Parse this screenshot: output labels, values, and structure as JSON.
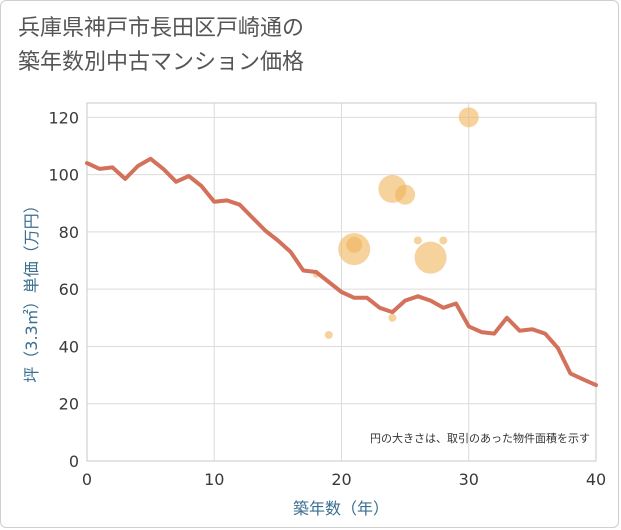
{
  "title_lines": [
    "兵庫県神戸市長田区戸崎通の",
    "築年数別中古マンション価格"
  ],
  "chart_data": {
    "type": "line",
    "title": "兵庫県神戸市長田区戸崎通の築年数別中古マンション価格",
    "xlabel": "築年数（年）",
    "ylabel": "坪（3.3㎡）単価（万円）",
    "xlim": [
      0,
      40
    ],
    "ylim": [
      0,
      125
    ],
    "x_ticks": [
      0,
      10,
      20,
      30,
      40
    ],
    "y_ticks": [
      0,
      20,
      40,
      60,
      80,
      100,
      120
    ],
    "grid": true,
    "note": "円の大きさは、取引のあった物件面積を示す",
    "series": [
      {
        "type": "line",
        "color": "#d4715a",
        "points": [
          [
            0,
            104
          ],
          [
            1,
            102
          ],
          [
            2,
            102.5
          ],
          [
            3,
            98.5
          ],
          [
            4,
            103
          ],
          [
            5,
            105.5
          ],
          [
            6,
            102
          ],
          [
            7,
            97.5
          ],
          [
            8,
            99.5
          ],
          [
            9,
            96
          ],
          [
            10,
            90.5
          ],
          [
            11,
            91
          ],
          [
            12,
            89.5
          ],
          [
            13,
            85
          ],
          [
            14,
            80.5
          ],
          [
            15,
            77
          ],
          [
            16,
            73
          ],
          [
            17,
            66.5
          ],
          [
            18,
            66
          ],
          [
            19,
            62.5
          ],
          [
            20,
            59
          ],
          [
            21,
            57
          ],
          [
            22,
            57
          ],
          [
            23,
            53.5
          ],
          [
            24,
            52
          ],
          [
            25,
            56
          ],
          [
            26,
            57.5
          ],
          [
            27,
            56
          ],
          [
            28,
            53.5
          ],
          [
            29,
            55
          ],
          [
            30,
            47
          ],
          [
            31,
            45
          ],
          [
            32,
            44.5
          ],
          [
            33,
            50
          ],
          [
            34,
            45.5
          ],
          [
            35,
            46
          ],
          [
            36,
            44.5
          ],
          [
            37,
            39.5
          ],
          [
            38,
            30.5
          ],
          [
            39,
            28.5
          ],
          [
            40,
            26.5
          ]
        ]
      },
      {
        "type": "scatter",
        "color": "#f0b45a",
        "points": [
          {
            "x": 30,
            "y": 120,
            "size": 10
          },
          {
            "x": 24,
            "y": 95,
            "size": 14
          },
          {
            "x": 25,
            "y": 93,
            "size": 10
          },
          {
            "x": 21,
            "y": 74,
            "size": 16
          },
          {
            "x": 21,
            "y": 75.5,
            "size": 8
          },
          {
            "x": 26,
            "y": 77,
            "size": 4
          },
          {
            "x": 28,
            "y": 77,
            "size": 4
          },
          {
            "x": 27,
            "y": 71,
            "size": 16
          },
          {
            "x": 18,
            "y": 65,
            "size": 3
          },
          {
            "x": 24,
            "y": 50,
            "size": 4
          },
          {
            "x": 19,
            "y": 44,
            "size": 4
          }
        ]
      }
    ]
  }
}
